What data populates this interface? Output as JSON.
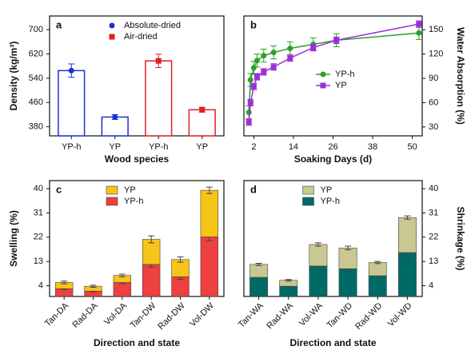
{
  "chart_data": [
    {
      "type": "bar",
      "label": "a",
      "ylabel": "Density (kg/m³)",
      "xlabel": "Wood species",
      "categories": [
        "YP-h",
        "YP",
        "YP-h",
        "YP"
      ],
      "series": [
        {
          "name": "Absolute-dried",
          "color": "#1f2fd0",
          "marker": "circle",
          "values": [
            565,
            412,
            null,
            null
          ],
          "errors": [
            22,
            8,
            null,
            null
          ]
        },
        {
          "name": "Air-dried",
          "color": "#e02020",
          "marker": "square",
          "values": [
            null,
            null,
            597,
            436
          ],
          "errors": [
            null,
            null,
            22,
            8
          ]
        }
      ],
      "ylim": [
        350,
        745
      ],
      "yticks": [
        380,
        460,
        540,
        620,
        700
      ],
      "y_axis_side": "left",
      "legend": "upper center"
    },
    {
      "type": "line",
      "label": "b",
      "ylabel": "Water Absorption (%)",
      "xlabel": "Soaking Days (d)",
      "series": [
        {
          "name": "YP-h",
          "color": "#2ca02c",
          "marker": "circle",
          "x": [
            0.5,
            1,
            2,
            3,
            5,
            8,
            13,
            20,
            27,
            52
          ],
          "values": [
            48,
            88,
            103,
            112,
            118,
            122,
            127,
            132,
            137,
            146
          ],
          "errors": [
            8,
            8,
            8,
            8,
            8,
            8,
            8,
            8,
            8,
            8
          ]
        },
        {
          "name": "YP",
          "color": "#9b30d9",
          "marker": "square",
          "x": [
            0.5,
            1,
            2,
            3,
            5,
            8,
            13,
            20,
            27,
            52
          ],
          "values": [
            36,
            60,
            80,
            92,
            98,
            104,
            115,
            128,
            137,
            157
          ],
          "errors": [
            4,
            4,
            4,
            4,
            4,
            4,
            4,
            4,
            4,
            4
          ]
        }
      ],
      "xlim": [
        -1,
        53
      ],
      "xticks": [
        2,
        14,
        26,
        38,
        50
      ],
      "ylim": [
        19,
        167
      ],
      "yticks": [
        30,
        60,
        90,
        120,
        150
      ],
      "y_axis_side": "right",
      "legend": "center left"
    },
    {
      "type": "stacked_bar",
      "label": "c",
      "ylabel": "Swelling (%)",
      "xlabel": "Direction and state",
      "categories": [
        "Tan-DA",
        "Rad-DA",
        "Vol-DA",
        "Tan-DW",
        "Rad-DW",
        "Vol-DW"
      ],
      "series": [
        {
          "name": "YP",
          "color": "#f5c518",
          "values": [
            2.3,
            1.8,
            2.6,
            9.3,
            6.4,
            17.3
          ],
          "errors": [
            0.5,
            0.4,
            0.5,
            1.3,
            1.0,
            1.2
          ]
        },
        {
          "name": "YP-h",
          "color": "#ee4040",
          "values": [
            2.9,
            2.0,
            5.2,
            11.9,
            7.3,
            22.1
          ],
          "errors": [
            0.3,
            0.3,
            0.4,
            1.0,
            0.9,
            1.4
          ]
        }
      ],
      "stack_order": [
        1,
        0
      ],
      "ylim": [
        0,
        43
      ],
      "yticks": [
        4,
        13,
        22,
        31,
        40
      ],
      "y_axis_side": "left",
      "legend": "upper center"
    },
    {
      "type": "stacked_bar",
      "label": "d",
      "ylabel": "Shrinkage (%)",
      "xlabel": "Direction and state",
      "categories": [
        "Tan-WA",
        "Rad-WA",
        "Vol-WA",
        "Tan-WD",
        "Rad-WD",
        "Vol-WD"
      ],
      "series": [
        {
          "name": "YP",
          "color": "#c9c891",
          "values": [
            4.8,
            2.2,
            8.0,
            7.7,
            4.9,
            13.0
          ],
          "errors": [
            0.4,
            0.3,
            0.6,
            0.7,
            0.4,
            0.6
          ]
        },
        {
          "name": "YP-h",
          "color": "#006b66",
          "values": [
            7.1,
            3.8,
            11.3,
            10.3,
            7.7,
            16.3
          ],
          "errors": [
            0.5,
            0.3,
            0.8,
            0.9,
            0.8,
            1.5
          ]
        }
      ],
      "stack_order": [
        1,
        0
      ],
      "ylim": [
        0,
        43
      ],
      "yticks": [
        4,
        13,
        22,
        31,
        40
      ],
      "y_axis_side": "right",
      "legend": "upper center"
    }
  ]
}
